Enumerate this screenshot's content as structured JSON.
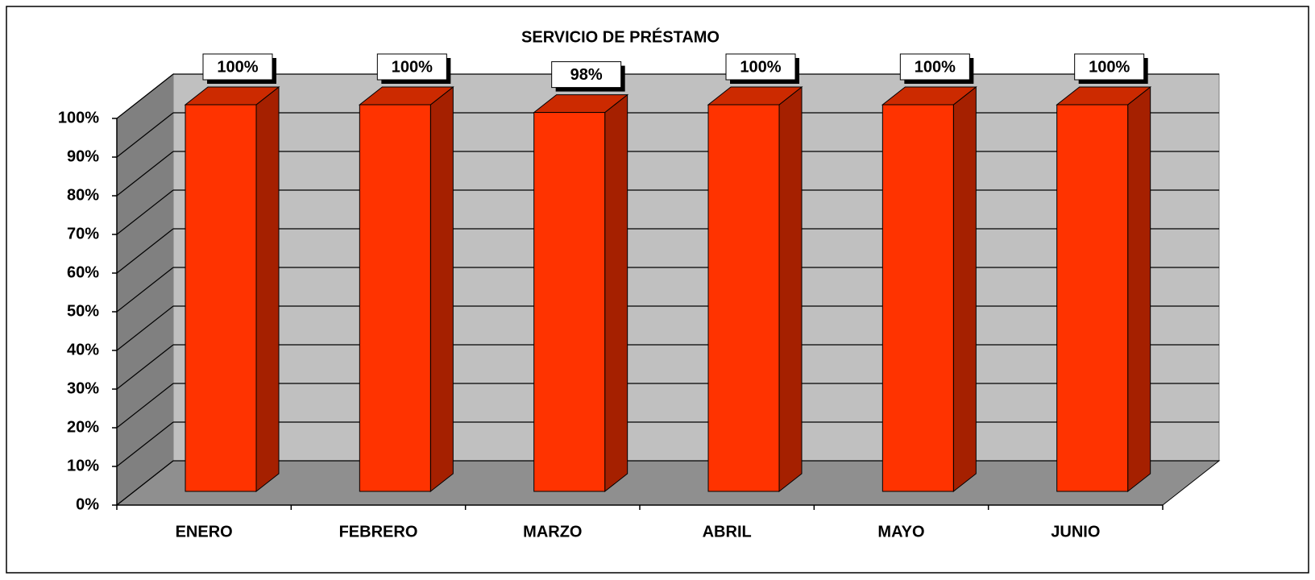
{
  "chart_data": {
    "type": "bar3d",
    "title": "SERVICIO DE PRÉSTAMO",
    "categories": [
      "ENERO",
      "FEBRERO",
      "MARZO",
      "ABRIL",
      "MAYO",
      "JUNIO"
    ],
    "values": [
      100,
      100,
      98,
      100,
      100,
      100
    ],
    "value_labels": [
      "100%",
      "100%",
      "98%",
      "100%",
      "100%",
      "100%"
    ],
    "color": "#ff3300",
    "ylim": [
      0,
      100
    ],
    "yticks": [
      {
        "value": 0,
        "label": "0%"
      },
      {
        "value": 10,
        "label": "10%"
      },
      {
        "value": 20,
        "label": "20%"
      },
      {
        "value": 30,
        "label": "30%"
      },
      {
        "value": 40,
        "label": "40%"
      },
      {
        "value": 50,
        "label": "50%"
      },
      {
        "value": 60,
        "label": "60%"
      },
      {
        "value": 70,
        "label": "70%"
      },
      {
        "value": 80,
        "label": "80%"
      },
      {
        "value": 90,
        "label": "90%"
      },
      {
        "value": 100,
        "label": "100%"
      }
    ],
    "grid": true
  }
}
